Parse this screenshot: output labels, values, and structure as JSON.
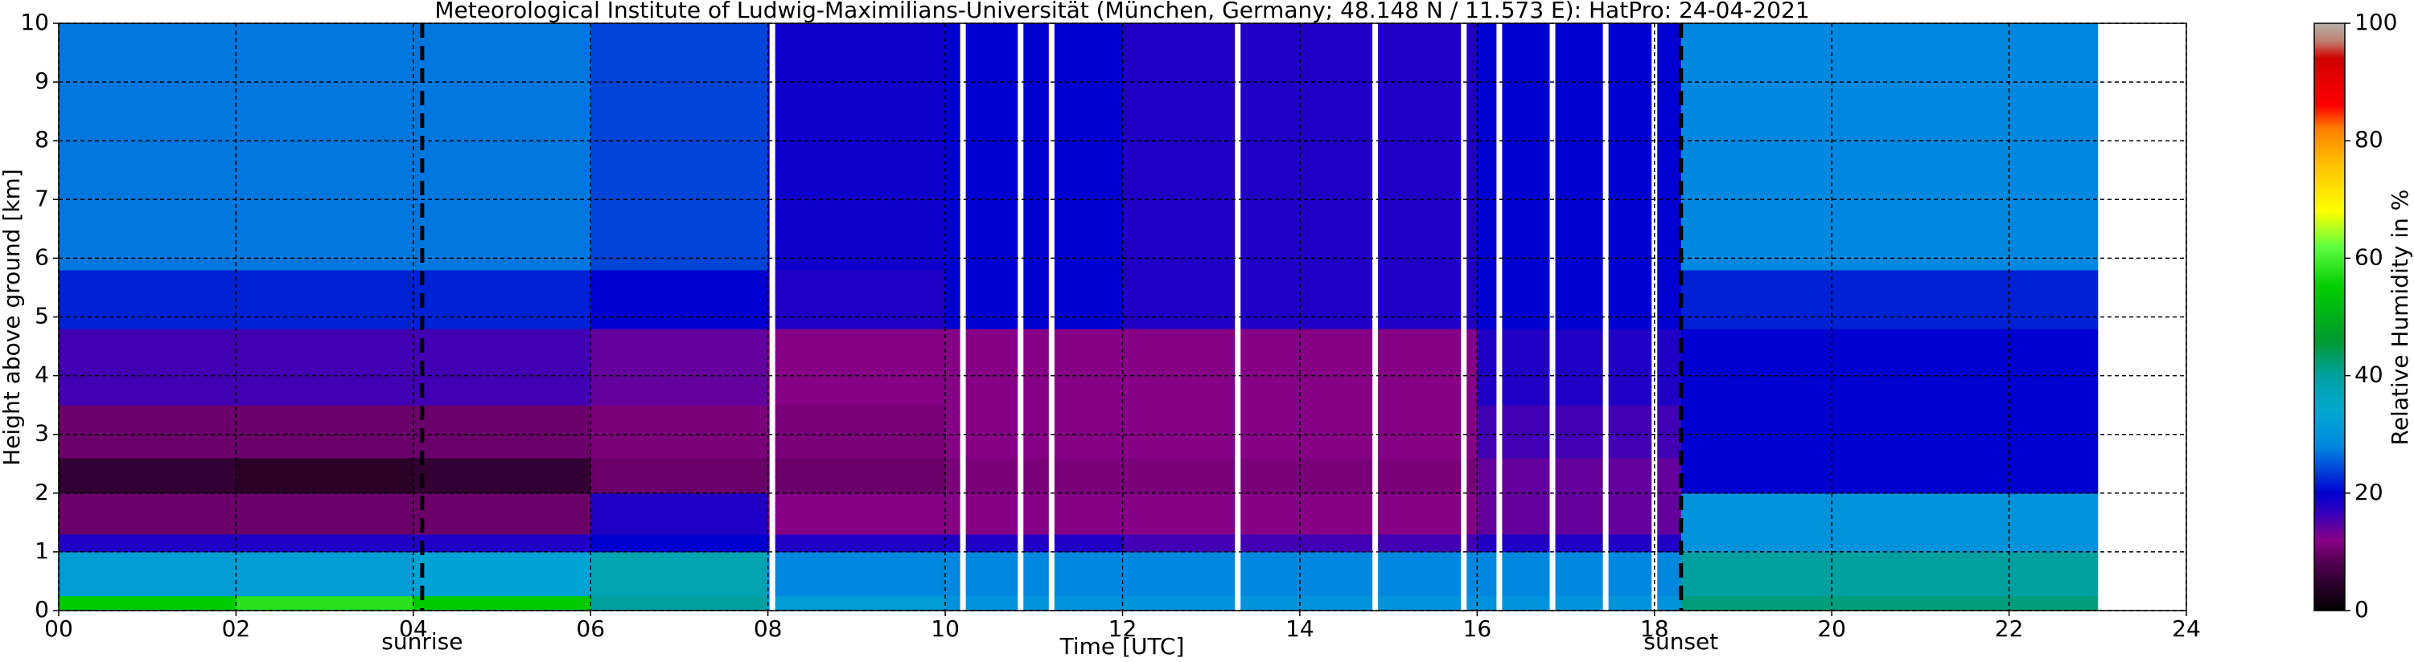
{
  "chart_data": {
    "type": "heatmap",
    "title": "Meteorological Institute of Ludwig-Maximilians-Universität (München, Germany; 48.148 N / 11.573 E):    HatPro: 24-04-2021",
    "xlabel": "Time [UTC]",
    "ylabel": "Height above ground [km]",
    "colorbar_label": "Relative Humidity in %",
    "xlim": [
      0,
      24
    ],
    "xticks": [
      {
        "value": 0,
        "label": "00"
      },
      {
        "value": 2,
        "label": "02"
      },
      {
        "value": 4,
        "label": "04"
      },
      {
        "value": 6,
        "label": "06"
      },
      {
        "value": 8,
        "label": "08"
      },
      10,
      12,
      14,
      16,
      18,
      20,
      22,
      24
    ],
    "ylim": [
      0,
      10
    ],
    "yticks": [
      0,
      1,
      2,
      3,
      4,
      5,
      6,
      7,
      8,
      9,
      10
    ],
    "clim": [
      0,
      100
    ],
    "cticks": [
      0,
      20,
      40,
      60,
      80,
      100
    ],
    "grid": true,
    "x_edges": [
      0,
      2,
      4,
      6,
      8,
      10,
      12,
      14,
      16,
      18.3,
      20,
      23
    ],
    "y_edges": [
      0,
      0.25,
      1,
      1.3,
      2,
      2.6,
      3.5,
      4.8,
      5.8,
      10
    ],
    "z": [
      [
        55,
        58,
        55,
        40,
        32,
        30,
        30,
        30,
        30,
        42,
        42
      ],
      [
        32,
        32,
        33,
        38,
        28,
        28,
        28,
        28,
        28,
        40,
        40
      ],
      [
        18,
        18,
        18,
        20,
        18,
        18,
        16,
        16,
        18,
        30,
        30
      ],
      [
        10,
        10,
        10,
        18,
        12,
        12,
        12,
        12,
        14,
        30,
        30
      ],
      [
        5,
        4,
        5,
        10,
        10,
        11,
        11,
        11,
        14,
        20,
        20
      ],
      [
        10,
        10,
        10,
        11,
        11,
        12,
        12,
        12,
        16,
        20,
        20
      ],
      [
        16,
        16,
        16,
        14,
        12,
        12,
        12,
        12,
        18,
        20,
        20
      ],
      [
        22,
        22,
        22,
        20,
        18,
        20,
        18,
        18,
        20,
        22,
        22
      ],
      [
        27,
        27,
        27,
        24,
        19,
        20,
        18,
        18,
        20,
        28,
        28
      ]
    ],
    "colormap": [
      [
        0,
        "#000000"
      ],
      [
        8,
        "#500050"
      ],
      [
        12,
        "#860086"
      ],
      [
        17,
        "#3000c0"
      ],
      [
        20,
        "#0000d0"
      ],
      [
        28,
        "#0088e0"
      ],
      [
        34,
        "#00a8d0"
      ],
      [
        40,
        "#00a0a0"
      ],
      [
        46,
        "#009a30"
      ],
      [
        55,
        "#00cc00"
      ],
      [
        62,
        "#60ff40"
      ],
      [
        68,
        "#ffff00"
      ],
      [
        76,
        "#ffc000"
      ],
      [
        82,
        "#ff8000"
      ],
      [
        86,
        "#ff0000"
      ],
      [
        94,
        "#d00000"
      ],
      [
        97,
        "#c08070"
      ],
      [
        100,
        "#b8b0a8"
      ]
    ],
    "gaps": [
      8.05,
      10.2,
      10.85,
      11.2,
      13.3,
      14.85,
      15.85,
      16.25,
      16.85,
      17.45,
      18.0
    ],
    "annotations": [
      {
        "x": 4.1,
        "text": "sunrise"
      },
      {
        "x": 18.3,
        "text": "sunset"
      }
    ]
  }
}
